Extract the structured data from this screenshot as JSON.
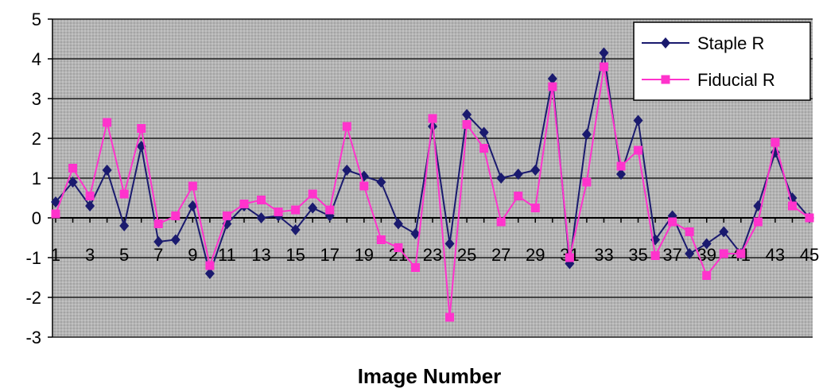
{
  "chart_data": {
    "type": "line",
    "title": "",
    "xlabel": "Image Number",
    "ylabel": "",
    "ylim": [
      -3,
      5
    ],
    "yticks": [
      -3,
      -2,
      -1,
      0,
      1,
      2,
      3,
      4,
      5
    ],
    "x": [
      1,
      2,
      3,
      4,
      5,
      6,
      7,
      8,
      9,
      10,
      11,
      12,
      13,
      14,
      15,
      16,
      17,
      18,
      19,
      20,
      21,
      22,
      23,
      24,
      25,
      26,
      27,
      28,
      29,
      30,
      31,
      32,
      33,
      34,
      35,
      36,
      37,
      38,
      39,
      40,
      41,
      42,
      43,
      44,
      45
    ],
    "xtick_labels": [
      "1",
      "3",
      "5",
      "7",
      "9",
      "11",
      "13",
      "15",
      "17",
      "19",
      "21",
      "23",
      "25",
      "27",
      "29",
      "31",
      "33",
      "35",
      "37",
      "39",
      "41",
      "43",
      "45"
    ],
    "grid": "horizontal",
    "legend_position": "top-right",
    "series": [
      {
        "name": "Staple R",
        "color": "#1a1a6e",
        "marker": "diamond",
        "values": [
          0.4,
          0.9,
          0.3,
          1.2,
          -0.2,
          1.8,
          -0.6,
          -0.55,
          0.3,
          -1.4,
          -0.15,
          0.3,
          0.0,
          0.05,
          -0.3,
          0.25,
          0.05,
          1.2,
          1.05,
          0.9,
          -0.15,
          -0.4,
          2.3,
          -0.65,
          2.6,
          2.15,
          1.0,
          1.1,
          1.2,
          3.5,
          -1.15,
          2.1,
          4.15,
          1.1,
          2.45,
          -0.55,
          0.05,
          -0.9,
          -0.65,
          -0.35,
          -0.9,
          0.3,
          1.65,
          0.5,
          0.0
        ]
      },
      {
        "name": "Fiducial R",
        "color": "#ff33cc",
        "marker": "square",
        "values": [
          0.1,
          1.25,
          0.55,
          2.4,
          0.6,
          2.25,
          -0.15,
          0.05,
          0.8,
          -1.2,
          0.05,
          0.35,
          0.45,
          0.15,
          0.2,
          0.6,
          0.2,
          2.3,
          0.8,
          -0.55,
          -0.75,
          -1.25,
          2.5,
          -2.5,
          2.35,
          1.75,
          -0.1,
          0.55,
          0.25,
          3.3,
          -1.0,
          0.9,
          3.8,
          1.3,
          1.7,
          -0.95,
          -0.1,
          -0.35,
          -1.45,
          -0.9,
          -0.9,
          -0.1,
          1.9,
          0.3,
          0.0
        ]
      }
    ]
  }
}
